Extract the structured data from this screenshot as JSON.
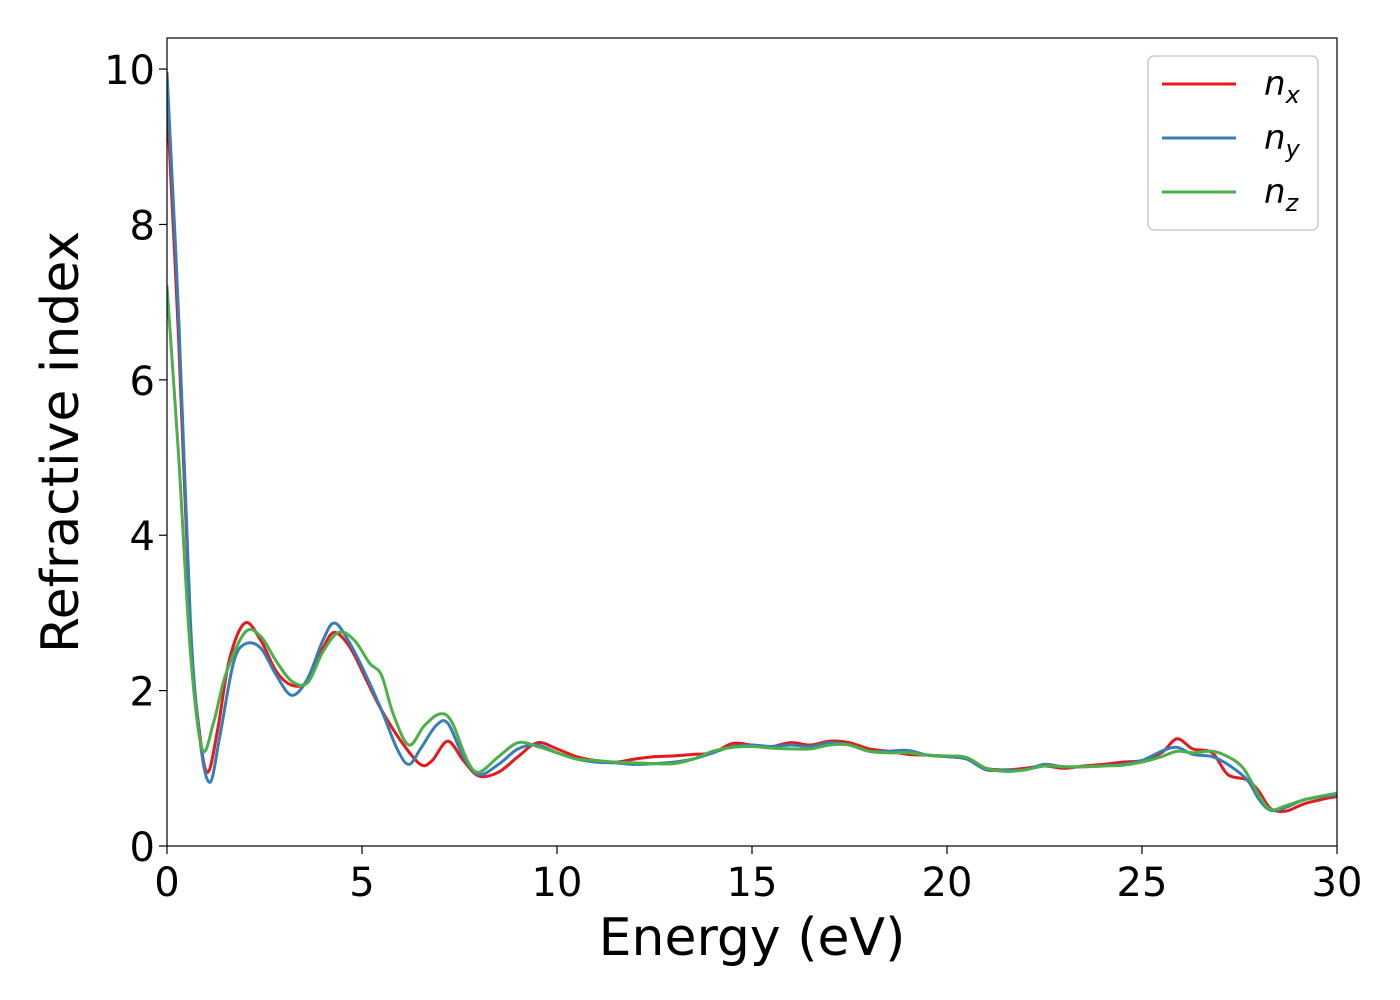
{
  "chart_data": {
    "type": "line",
    "title": "",
    "xlabel": "Energy (eV)",
    "ylabel": "Refractive index",
    "xlim": [
      0,
      30
    ],
    "ylim": [
      0,
      10.4
    ],
    "xticks": [
      0,
      5,
      10,
      15,
      20,
      25,
      30
    ],
    "xtick_labels": [
      "0",
      "5",
      "10",
      "15",
      "20",
      "25",
      "30"
    ],
    "yticks": [
      0,
      2,
      4,
      6,
      8,
      10
    ],
    "ytick_labels": [
      "0",
      "2",
      "4",
      "6",
      "8",
      "10"
    ],
    "grid": false,
    "legend_position": "top-right",
    "series": [
      {
        "name": "n",
        "subscript": "x",
        "color": "#e41a1c",
        "points": [
          [
            0,
            9.6
          ],
          [
            0.3,
            6.5
          ],
          [
            0.6,
            2.8
          ],
          [
            0.85,
            1.4
          ],
          [
            1.05,
            0.95
          ],
          [
            1.3,
            1.5
          ],
          [
            1.6,
            2.4
          ],
          [
            2.0,
            2.87
          ],
          [
            2.4,
            2.65
          ],
          [
            2.8,
            2.25
          ],
          [
            3.2,
            2.07
          ],
          [
            3.6,
            2.12
          ],
          [
            4.0,
            2.55
          ],
          [
            4.3,
            2.75
          ],
          [
            4.7,
            2.55
          ],
          [
            5.1,
            2.15
          ],
          [
            5.5,
            1.75
          ],
          [
            6.0,
            1.35
          ],
          [
            6.5,
            1.05
          ],
          [
            6.8,
            1.1
          ],
          [
            7.2,
            1.35
          ],
          [
            7.6,
            1.1
          ],
          [
            8.0,
            0.9
          ],
          [
            8.5,
            0.95
          ],
          [
            9.0,
            1.15
          ],
          [
            9.5,
            1.33
          ],
          [
            10.0,
            1.25
          ],
          [
            10.5,
            1.15
          ],
          [
            11,
            1.1
          ],
          [
            11.5,
            1.08
          ],
          [
            12,
            1.12
          ],
          [
            12.5,
            1.15
          ],
          [
            13,
            1.16
          ],
          [
            13.5,
            1.18
          ],
          [
            14,
            1.2
          ],
          [
            14.5,
            1.32
          ],
          [
            15,
            1.3
          ],
          [
            15.5,
            1.28
          ],
          [
            16,
            1.33
          ],
          [
            16.5,
            1.3
          ],
          [
            17,
            1.35
          ],
          [
            17.5,
            1.33
          ],
          [
            18,
            1.25
          ],
          [
            18.5,
            1.22
          ],
          [
            19,
            1.18
          ],
          [
            19.5,
            1.17
          ],
          [
            20,
            1.15
          ],
          [
            20.5,
            1.12
          ],
          [
            21,
            1.0
          ],
          [
            21.5,
            0.98
          ],
          [
            22,
            1.0
          ],
          [
            22.5,
            1.03
          ],
          [
            23,
            1.0
          ],
          [
            23.5,
            1.03
          ],
          [
            24,
            1.05
          ],
          [
            24.5,
            1.08
          ],
          [
            25,
            1.1
          ],
          [
            25.5,
            1.2
          ],
          [
            25.9,
            1.38
          ],
          [
            26.3,
            1.25
          ],
          [
            26.8,
            1.2
          ],
          [
            27.2,
            0.92
          ],
          [
            27.7,
            0.85
          ],
          [
            28.0,
            0.7
          ],
          [
            28.3,
            0.48
          ],
          [
            28.7,
            0.45
          ],
          [
            29.2,
            0.55
          ],
          [
            30,
            0.64
          ]
        ]
      },
      {
        "name": "n",
        "subscript": "y",
        "color": "#377eb8",
        "points": [
          [
            0,
            9.95
          ],
          [
            0.3,
            6.8
          ],
          [
            0.6,
            2.9
          ],
          [
            0.85,
            1.35
          ],
          [
            1.1,
            0.82
          ],
          [
            1.35,
            1.4
          ],
          [
            1.7,
            2.35
          ],
          [
            2.0,
            2.6
          ],
          [
            2.4,
            2.55
          ],
          [
            2.8,
            2.2
          ],
          [
            3.2,
            1.94
          ],
          [
            3.6,
            2.15
          ],
          [
            4.0,
            2.65
          ],
          [
            4.3,
            2.87
          ],
          [
            4.7,
            2.6
          ],
          [
            5.1,
            2.2
          ],
          [
            5.5,
            1.75
          ],
          [
            5.9,
            1.25
          ],
          [
            6.2,
            1.05
          ],
          [
            6.5,
            1.25
          ],
          [
            6.9,
            1.55
          ],
          [
            7.2,
            1.58
          ],
          [
            7.6,
            1.15
          ],
          [
            8.0,
            0.92
          ],
          [
            8.5,
            1.05
          ],
          [
            9.0,
            1.25
          ],
          [
            9.5,
            1.3
          ],
          [
            10.0,
            1.2
          ],
          [
            10.5,
            1.12
          ],
          [
            11,
            1.08
          ],
          [
            11.5,
            1.07
          ],
          [
            12,
            1.05
          ],
          [
            12.5,
            1.06
          ],
          [
            13,
            1.08
          ],
          [
            13.5,
            1.12
          ],
          [
            14,
            1.2
          ],
          [
            14.5,
            1.28
          ],
          [
            15,
            1.3
          ],
          [
            15.5,
            1.28
          ],
          [
            16,
            1.3
          ],
          [
            16.5,
            1.28
          ],
          [
            17,
            1.33
          ],
          [
            17.5,
            1.3
          ],
          [
            18,
            1.22
          ],
          [
            18.5,
            1.22
          ],
          [
            19,
            1.23
          ],
          [
            19.5,
            1.17
          ],
          [
            20,
            1.15
          ],
          [
            20.5,
            1.12
          ],
          [
            21,
            0.98
          ],
          [
            21.5,
            0.98
          ],
          [
            22,
            0.98
          ],
          [
            22.5,
            1.05
          ],
          [
            23,
            1.02
          ],
          [
            23.5,
            1.02
          ],
          [
            24,
            1.03
          ],
          [
            24.5,
            1.05
          ],
          [
            25,
            1.1
          ],
          [
            25.5,
            1.22
          ],
          [
            25.9,
            1.27
          ],
          [
            26.3,
            1.18
          ],
          [
            26.8,
            1.15
          ],
          [
            27.2,
            1.05
          ],
          [
            27.7,
            0.85
          ],
          [
            28.0,
            0.6
          ],
          [
            28.3,
            0.46
          ],
          [
            28.7,
            0.5
          ],
          [
            29.2,
            0.6
          ],
          [
            30,
            0.66
          ]
        ]
      },
      {
        "name": "n",
        "subscript": "z",
        "color": "#4daf4a",
        "points": [
          [
            0,
            7.2
          ],
          [
            0.3,
            5.0
          ],
          [
            0.6,
            2.5
          ],
          [
            0.9,
            1.25
          ],
          [
            1.2,
            1.6
          ],
          [
            1.5,
            2.2
          ],
          [
            2.0,
            2.75
          ],
          [
            2.4,
            2.7
          ],
          [
            2.8,
            2.38
          ],
          [
            3.2,
            2.12
          ],
          [
            3.6,
            2.1
          ],
          [
            4.0,
            2.5
          ],
          [
            4.4,
            2.75
          ],
          [
            4.8,
            2.65
          ],
          [
            5.2,
            2.35
          ],
          [
            5.5,
            2.2
          ],
          [
            5.8,
            1.7
          ],
          [
            6.2,
            1.3
          ],
          [
            6.6,
            1.55
          ],
          [
            7.0,
            1.7
          ],
          [
            7.3,
            1.6
          ],
          [
            7.7,
            1.1
          ],
          [
            8.0,
            0.95
          ],
          [
            8.5,
            1.15
          ],
          [
            9.0,
            1.33
          ],
          [
            9.5,
            1.28
          ],
          [
            10.0,
            1.2
          ],
          [
            10.5,
            1.12
          ],
          [
            11,
            1.1
          ],
          [
            11.5,
            1.08
          ],
          [
            12,
            1.07
          ],
          [
            12.5,
            1.06
          ],
          [
            13,
            1.06
          ],
          [
            13.5,
            1.12
          ],
          [
            14,
            1.22
          ],
          [
            14.5,
            1.27
          ],
          [
            15,
            1.28
          ],
          [
            15.5,
            1.26
          ],
          [
            16,
            1.25
          ],
          [
            16.5,
            1.25
          ],
          [
            17,
            1.3
          ],
          [
            17.5,
            1.3
          ],
          [
            18,
            1.22
          ],
          [
            18.5,
            1.2
          ],
          [
            19,
            1.2
          ],
          [
            19.5,
            1.17
          ],
          [
            20,
            1.16
          ],
          [
            20.5,
            1.14
          ],
          [
            21,
            1.0
          ],
          [
            21.5,
            0.96
          ],
          [
            22,
            0.98
          ],
          [
            22.5,
            1.03
          ],
          [
            23,
            1.02
          ],
          [
            23.5,
            1.02
          ],
          [
            24,
            1.03
          ],
          [
            24.5,
            1.04
          ],
          [
            25,
            1.08
          ],
          [
            25.5,
            1.15
          ],
          [
            25.9,
            1.22
          ],
          [
            26.3,
            1.2
          ],
          [
            26.8,
            1.22
          ],
          [
            27.2,
            1.15
          ],
          [
            27.6,
            1.0
          ],
          [
            28.0,
            0.65
          ],
          [
            28.3,
            0.47
          ],
          [
            28.7,
            0.52
          ],
          [
            29.2,
            0.6
          ],
          [
            30,
            0.68
          ]
        ]
      }
    ]
  }
}
